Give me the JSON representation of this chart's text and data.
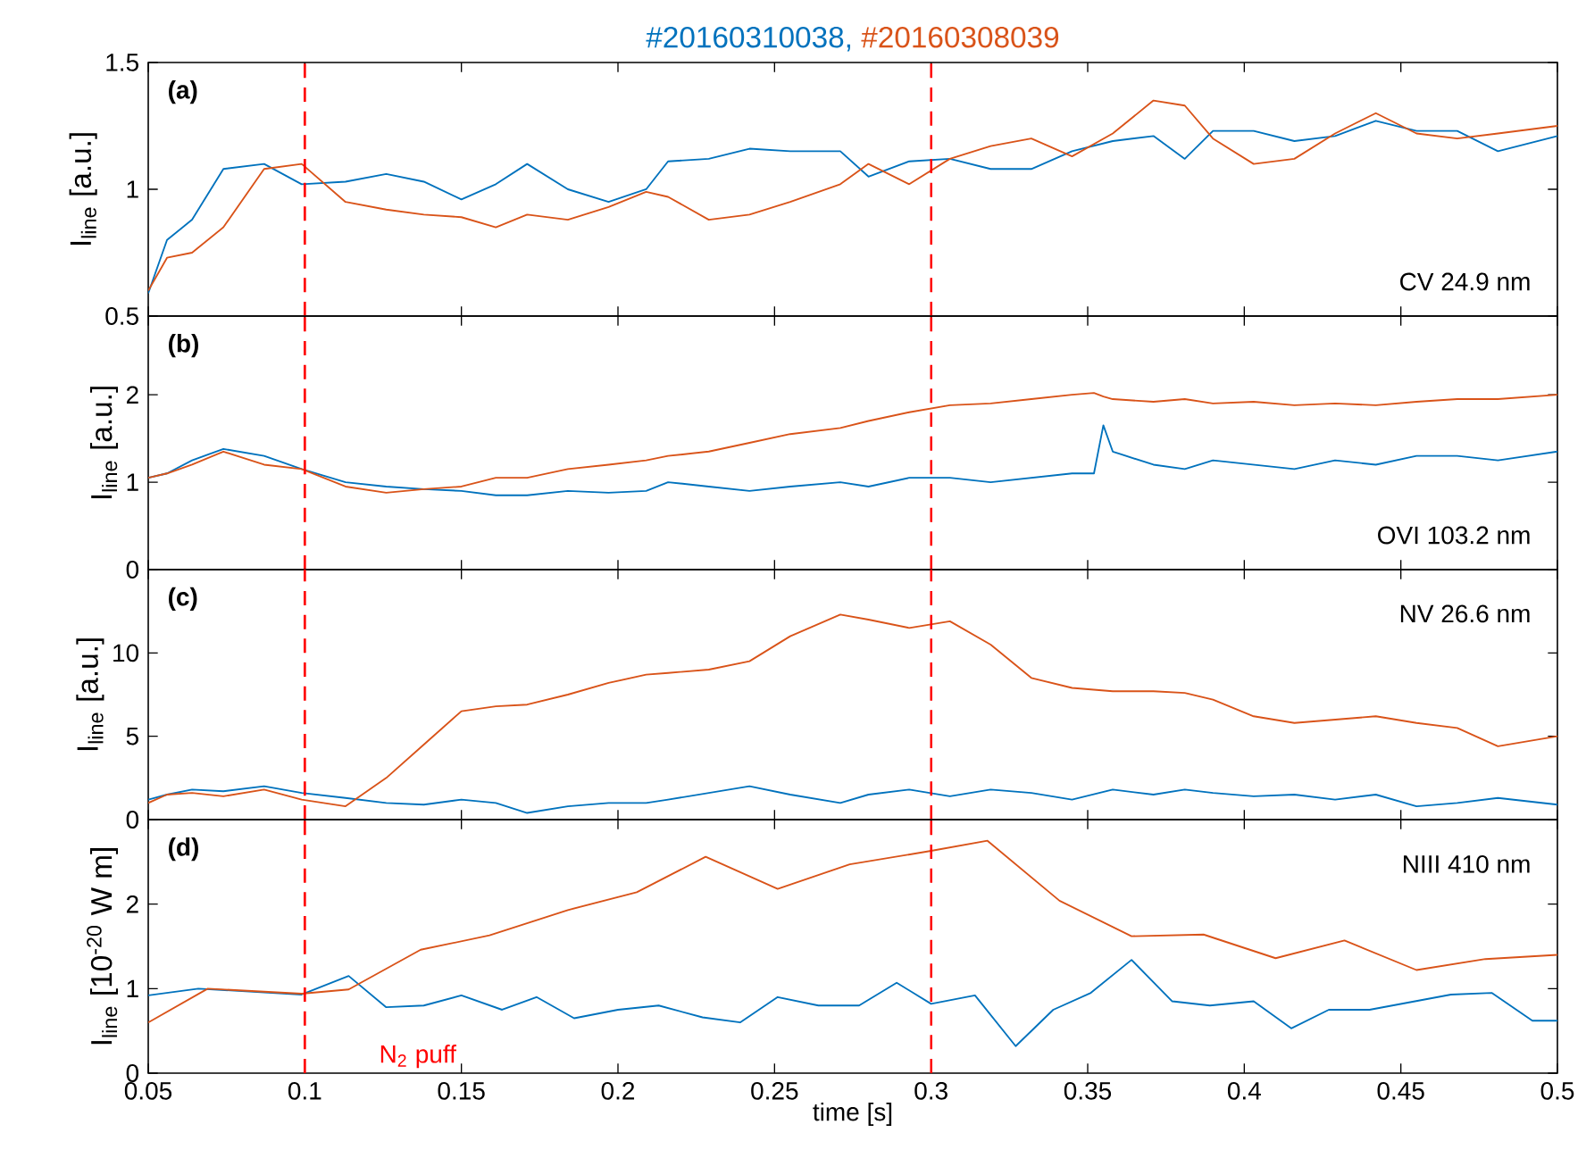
{
  "chart_data": [
    {
      "type": "line",
      "ylabel": "I$_{line}$ [a.u.]",
      "annotations": [
        "(a)",
        "CV 24.9 nm"
      ],
      "tick_labels": "y",
      "x": [
        0.05,
        0.056,
        0.064,
        0.074,
        0.087,
        0.099,
        0.113,
        0.126,
        0.138,
        0.15,
        0.161,
        0.171,
        0.184,
        0.197,
        0.209,
        0.216,
        0.229,
        0.242,
        0.255,
        0.271,
        0.28,
        0.293,
        0.306,
        0.319,
        0.332,
        0.345,
        0.358,
        0.371,
        0.381,
        0.39,
        0.403,
        0.416,
        0.429,
        0.442,
        0.455,
        0.468,
        0.481,
        0.5
      ],
      "series": [
        {
          "name": "#20160310038,",
          "color": "#0072bd",
          "values": [
            0.59,
            0.8,
            0.88,
            1.08,
            1.1,
            1.02,
            1.03,
            1.06,
            1.03,
            0.96,
            1.02,
            1.1,
            1.0,
            0.95,
            1.0,
            1.11,
            1.12,
            1.16,
            1.15,
            1.15,
            1.05,
            1.11,
            1.12,
            1.08,
            1.08,
            1.15,
            1.19,
            1.21,
            1.12,
            1.23,
            1.23,
            1.19,
            1.21,
            1.27,
            1.23,
            1.23,
            1.15,
            1.21
          ]
        },
        {
          "name": "#20160308039",
          "color": "#d95319",
          "values": [
            0.6,
            0.73,
            0.75,
            0.85,
            1.08,
            1.1,
            0.95,
            0.92,
            0.9,
            0.89,
            0.85,
            0.9,
            0.88,
            0.93,
            0.99,
            0.97,
            0.88,
            0.9,
            0.95,
            1.02,
            1.1,
            1.02,
            1.12,
            1.17,
            1.2,
            1.13,
            1.22,
            1.35,
            1.33,
            1.2,
            1.1,
            1.12,
            1.22,
            1.3,
            1.22,
            1.2,
            1.22,
            1.25
          ]
        }
      ],
      "xlim": [
        0.05,
        0.5
      ],
      "xticks": [
        0.05,
        0.1,
        0.15,
        0.2,
        0.25,
        0.3,
        0.35,
        0.4,
        0.45,
        0.5
      ],
      "ylim": [
        0.5,
        1.5
      ],
      "yticks": [
        0.5,
        1,
        1.5
      ],
      "ref_lines": [
        {
          "axis": "x",
          "value": 0.1,
          "color": "#ff0000",
          "line_style": "dashed"
        },
        {
          "axis": "x",
          "value": 0.3,
          "color": "#ff0000",
          "line_style": "dashed"
        }
      ]
    },
    {
      "type": "line",
      "ylabel": "I$_{line}$ [a.u.]",
      "annotations": [
        "(b)",
        "OVI 103.2 nm"
      ],
      "tick_labels": "y",
      "x": [
        0.05,
        0.056,
        0.064,
        0.074,
        0.087,
        0.099,
        0.113,
        0.126,
        0.138,
        0.15,
        0.161,
        0.171,
        0.184,
        0.197,
        0.209,
        0.216,
        0.229,
        0.242,
        0.255,
        0.271,
        0.28,
        0.293,
        0.306,
        0.319,
        0.332,
        0.345,
        0.352,
        0.355,
        0.358,
        0.371,
        0.381,
        0.39,
        0.403,
        0.416,
        0.429,
        0.442,
        0.455,
        0.468,
        0.481,
        0.5
      ],
      "series": [
        {
          "color": "#0072bd",
          "values": [
            1.05,
            1.1,
            1.25,
            1.38,
            1.3,
            1.15,
            1.0,
            0.95,
            0.92,
            0.9,
            0.85,
            0.85,
            0.9,
            0.88,
            0.9,
            1.0,
            0.95,
            0.9,
            0.95,
            1.0,
            0.95,
            1.05,
            1.05,
            1.0,
            1.05,
            1.1,
            1.1,
            1.65,
            1.35,
            1.2,
            1.15,
            1.25,
            1.2,
            1.15,
            1.25,
            1.2,
            1.3,
            1.3,
            1.25,
            1.35
          ]
        },
        {
          "color": "#d95319",
          "values": [
            1.05,
            1.1,
            1.2,
            1.35,
            1.2,
            1.15,
            0.95,
            0.88,
            0.92,
            0.95,
            1.05,
            1.05,
            1.15,
            1.2,
            1.25,
            1.3,
            1.35,
            1.45,
            1.55,
            1.62,
            1.7,
            1.8,
            1.88,
            1.9,
            1.95,
            2.0,
            2.02,
            1.98,
            1.95,
            1.92,
            1.95,
            1.9,
            1.92,
            1.88,
            1.9,
            1.88,
            1.92,
            1.95,
            1.95,
            2.0
          ]
        }
      ],
      "xlim": [
        0.05,
        0.5
      ],
      "xticks": [
        0.05,
        0.1,
        0.15,
        0.2,
        0.25,
        0.3,
        0.35,
        0.4,
        0.45,
        0.5
      ],
      "ylim": [
        0,
        2.9
      ],
      "yticks": [
        0,
        1,
        2
      ],
      "ref_lines": [
        {
          "axis": "x",
          "value": 0.1,
          "color": "#ff0000",
          "line_style": "dashed"
        },
        {
          "axis": "x",
          "value": 0.3,
          "color": "#ff0000",
          "line_style": "dashed"
        }
      ]
    },
    {
      "type": "line",
      "ylabel": "I$_{line}$ [a.u.]",
      "annotations": [
        "(c)",
        "NV 26.6 nm"
      ],
      "tick_labels": "y",
      "x": [
        0.05,
        0.056,
        0.064,
        0.074,
        0.087,
        0.099,
        0.113,
        0.126,
        0.138,
        0.15,
        0.161,
        0.171,
        0.184,
        0.197,
        0.209,
        0.216,
        0.229,
        0.242,
        0.255,
        0.271,
        0.28,
        0.293,
        0.306,
        0.319,
        0.332,
        0.345,
        0.358,
        0.371,
        0.381,
        0.39,
        0.403,
        0.416,
        0.429,
        0.442,
        0.455,
        0.468,
        0.481,
        0.5
      ],
      "series": [
        {
          "color": "#0072bd",
          "values": [
            1.2,
            1.5,
            1.8,
            1.7,
            2.0,
            1.6,
            1.3,
            1.0,
            0.9,
            1.2,
            1.0,
            0.4,
            0.8,
            1.0,
            1.0,
            1.2,
            1.6,
            2.0,
            1.5,
            1.0,
            1.5,
            1.8,
            1.4,
            1.8,
            1.6,
            1.2,
            1.8,
            1.5,
            1.8,
            1.6,
            1.4,
            1.5,
            1.2,
            1.5,
            0.8,
            1.0,
            1.3,
            0.9
          ]
        },
        {
          "color": "#d95319",
          "values": [
            1.0,
            1.5,
            1.6,
            1.4,
            1.8,
            1.2,
            0.8,
            2.5,
            4.5,
            6.5,
            6.8,
            6.9,
            7.5,
            8.2,
            8.7,
            8.8,
            9.0,
            9.5,
            11.0,
            12.3,
            12.0,
            11.5,
            11.9,
            10.5,
            8.5,
            7.9,
            7.7,
            7.7,
            7.6,
            7.2,
            6.2,
            5.8,
            6.0,
            6.2,
            5.8,
            5.5,
            4.4,
            5.0
          ]
        }
      ],
      "xlim": [
        0.05,
        0.5
      ],
      "xticks": [
        0.05,
        0.1,
        0.15,
        0.2,
        0.25,
        0.3,
        0.35,
        0.4,
        0.45,
        0.5
      ],
      "ylim": [
        0,
        15
      ],
      "yticks": [
        0,
        5,
        10
      ],
      "ref_lines": [
        {
          "axis": "x",
          "value": 0.1,
          "color": "#ff0000",
          "line_style": "dashed"
        },
        {
          "axis": "x",
          "value": 0.3,
          "color": "#ff0000",
          "line_style": "dashed"
        }
      ]
    },
    {
      "type": "line",
      "xlabel": "time [s]",
      "ylabel": "I$_{line}$ [10$^{-20}$ W m]",
      "annotations": [
        "(d)",
        "NIII 410 nm"
      ],
      "series": [
        {
          "color": "#0072bd",
          "x": [
            0.05,
            0.066,
            0.099,
            0.114,
            0.126,
            0.138,
            0.15,
            0.163,
            0.174,
            0.186,
            0.2,
            0.213,
            0.227,
            0.239,
            0.251,
            0.264,
            0.277,
            0.289,
            0.3,
            0.314,
            0.327,
            0.339,
            0.351,
            0.364,
            0.377,
            0.389,
            0.403,
            0.415,
            0.427,
            0.44,
            0.453,
            0.466,
            0.479,
            0.492,
            0.5
          ],
          "values": [
            0.92,
            1.0,
            0.93,
            1.15,
            0.78,
            0.8,
            0.92,
            0.75,
            0.9,
            0.65,
            0.75,
            0.8,
            0.66,
            0.6,
            0.9,
            0.8,
            0.8,
            1.07,
            0.82,
            0.92,
            0.32,
            0.75,
            0.95,
            1.34,
            0.85,
            0.8,
            0.85,
            0.53,
            0.75,
            0.75,
            0.84,
            0.93,
            0.95,
            0.62,
            0.62
          ]
        },
        {
          "color": "#d95319",
          "x": [
            0.05,
            0.069,
            0.099,
            0.114,
            0.137,
            0.159,
            0.184,
            0.206,
            0.228,
            0.251,
            0.274,
            0.3,
            0.318,
            0.341,
            0.364,
            0.387,
            0.41,
            0.432,
            0.455,
            0.477,
            0.5
          ],
          "values": [
            0.6,
            1.0,
            0.94,
            0.99,
            1.46,
            1.63,
            1.93,
            2.14,
            2.56,
            2.18,
            2.47,
            2.63,
            2.75,
            2.04,
            1.62,
            1.64,
            1.36,
            1.57,
            1.22,
            1.35,
            1.4
          ]
        }
      ],
      "xlim": [
        0.05,
        0.5
      ],
      "xticks": [
        0.05,
        0.1,
        0.15,
        0.2,
        0.25,
        0.3,
        0.35,
        0.4,
        0.45,
        0.5
      ],
      "ylim": [
        0,
        3
      ],
      "yticks": [
        0,
        1,
        2
      ],
      "ref_lines": [
        {
          "axis": "x",
          "value": 0.1,
          "color": "#ff0000",
          "line_style": "dashed",
          "label": "N$_{2}$ puff"
        },
        {
          "axis": "x",
          "value": 0.3,
          "color": "#ff0000",
          "line_style": "dashed"
        }
      ]
    }
  ]
}
